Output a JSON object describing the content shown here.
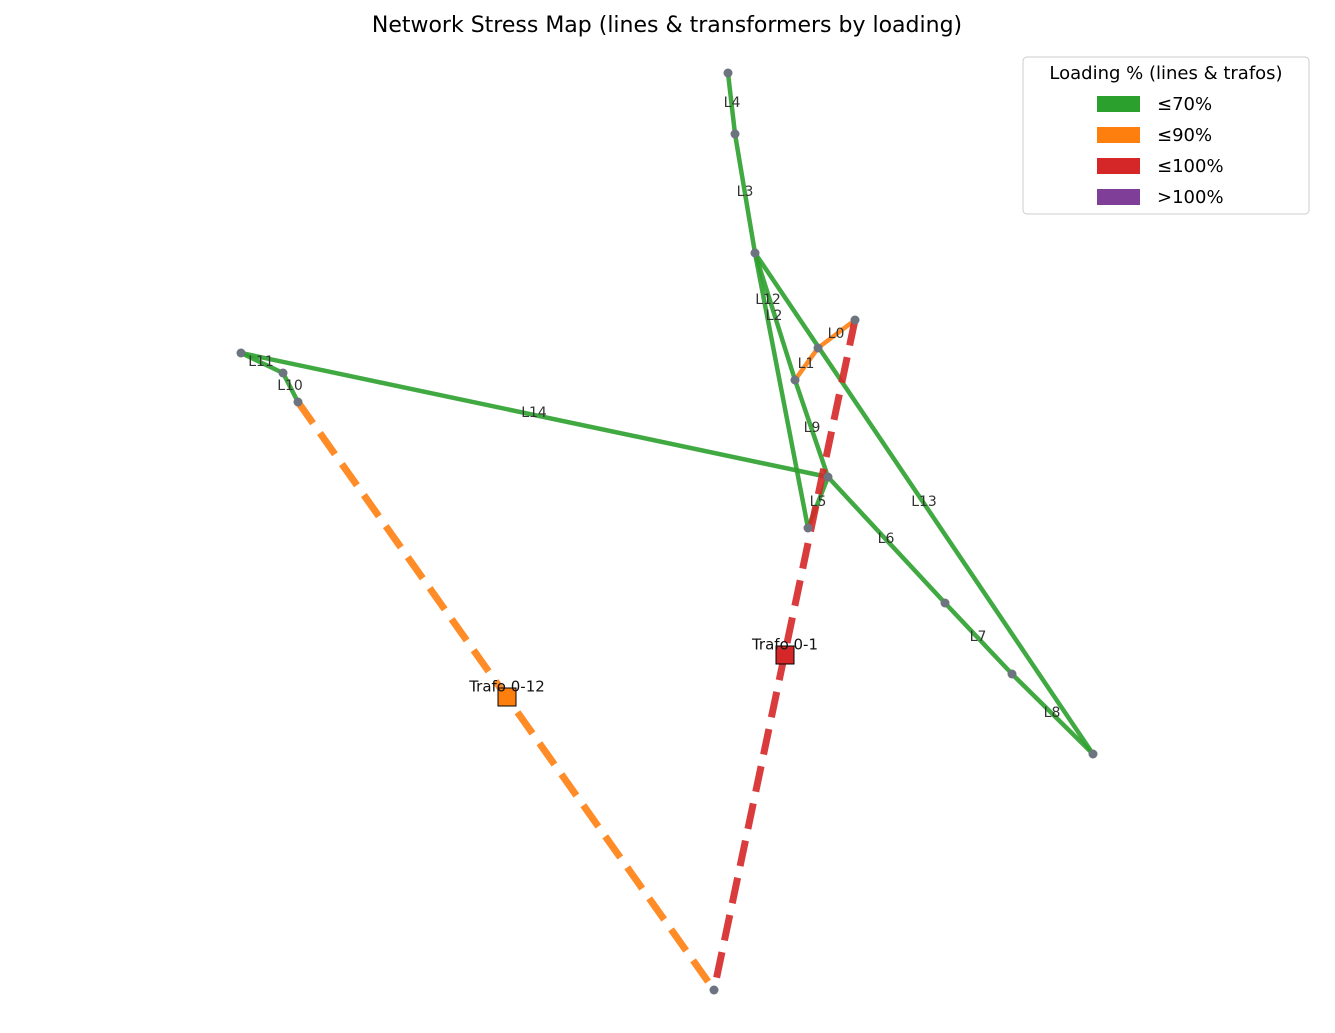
{
  "title": "Network Stress Map (lines & transformers by loading)",
  "legend": {
    "title": "Loading % (lines & trafos)",
    "items": [
      {
        "label": "≤70%",
        "color": "#2ca02c"
      },
      {
        "label": "≤90%",
        "color": "#ff7f0e"
      },
      {
        "label": "≤100%",
        "color": "#d62728"
      },
      {
        "label": ">100%",
        "color": "#7f3f98"
      }
    ]
  },
  "lines": [
    {
      "label": "L0",
      "color": "#ff7f0e"
    },
    {
      "label": "L1",
      "color": "#ff7f0e"
    },
    {
      "label": "L2",
      "color": "#2ca02c"
    },
    {
      "label": "L3",
      "color": "#2ca02c"
    },
    {
      "label": "L4",
      "color": "#2ca02c"
    },
    {
      "label": "L5",
      "color": "#2ca02c"
    },
    {
      "label": "L6",
      "color": "#2ca02c"
    },
    {
      "label": "L7",
      "color": "#2ca02c"
    },
    {
      "label": "L8",
      "color": "#2ca02c"
    },
    {
      "label": "L9",
      "color": "#2ca02c"
    },
    {
      "label": "L10",
      "color": "#2ca02c"
    },
    {
      "label": "L11",
      "color": "#2ca02c"
    },
    {
      "label": "L12",
      "color": "#2ca02c"
    },
    {
      "label": "L13",
      "color": "#2ca02c"
    },
    {
      "label": "L14",
      "color": "#2ca02c"
    }
  ],
  "trafos": [
    {
      "label": "Trafo 0-12",
      "color": "#ff7f0e"
    },
    {
      "label": "Trafo 0-1",
      "color": "#d62728"
    }
  ]
}
